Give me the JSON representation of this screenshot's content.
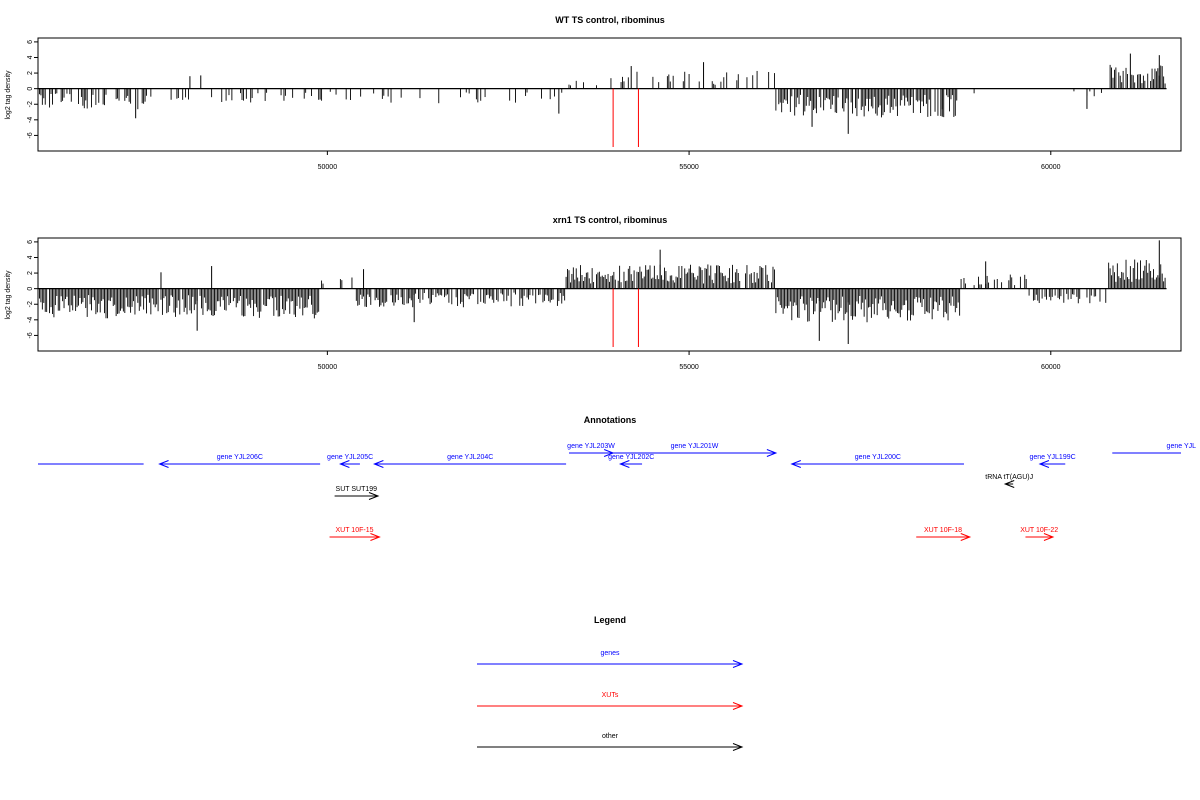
{
  "chart_data": [
    {
      "type": "bar",
      "title": "WT TS control, ribominus",
      "ylabel": "log2 tag density",
      "xlim": [
        46000,
        61800
      ],
      "ylim": [
        -8,
        6.5
      ],
      "xticks": [
        "50000",
        "55000",
        "60000"
      ],
      "xtick_values": [
        50000,
        55000,
        60000
      ],
      "yticks": [
        "6",
        "4",
        "2",
        "0",
        "-2",
        "-4",
        "-6"
      ],
      "ytick_values": [
        6,
        4,
        2,
        0,
        -2,
        -4,
        -6
      ],
      "grid": false,
      "colors": {
        "bars": "#000000",
        "markers": "#ff0000"
      },
      "data_range": [
        46000,
        61600
      ],
      "profile": [
        {
          "from": 46000,
          "to": 47500,
          "sign": -1,
          "amp": 2.2,
          "density": 0.6
        },
        {
          "from": 47500,
          "to": 53300,
          "sign": -1,
          "amp": 1.6,
          "density": 0.18
        },
        {
          "from": 53300,
          "to": 53850,
          "sign": 1,
          "amp": 1.2,
          "density": 0.1
        },
        {
          "from": 53850,
          "to": 56200,
          "sign": 1,
          "amp": 1.9,
          "density": 0.25
        },
        {
          "from": 56200,
          "to": 58750,
          "sign": -1,
          "amp": 3.1,
          "density": 0.85
        },
        {
          "from": 58750,
          "to": 60800,
          "sign": -1,
          "amp": 1.0,
          "density": 0.06
        },
        {
          "from": 60800,
          "to": 61600,
          "sign": 1,
          "amp": 2.6,
          "density": 0.8
        }
      ],
      "peaks": [
        {
          "x": 47350,
          "y": -3.8
        },
        {
          "x": 48100,
          "y": 1.6
        },
        {
          "x": 48250,
          "y": 1.7
        },
        {
          "x": 53200,
          "y": -3.2
        },
        {
          "x": 54200,
          "y": 2.9
        },
        {
          "x": 55200,
          "y": 3.4
        },
        {
          "x": 57200,
          "y": -5.8
        },
        {
          "x": 56700,
          "y": -4.9
        },
        {
          "x": 58500,
          "y": -3.6
        },
        {
          "x": 60500,
          "y": -2.6
        },
        {
          "x": 61100,
          "y": 4.5
        },
        {
          "x": 61500,
          "y": 4.3
        }
      ],
      "markers": [
        53950,
        54300
      ]
    },
    {
      "type": "bar",
      "title": "xrn1 TS control, ribominus",
      "ylabel": "log2 tag density",
      "xlim": [
        46000,
        61800
      ],
      "ylim": [
        -8,
        6.5
      ],
      "xticks": [
        "50000",
        "55000",
        "60000"
      ],
      "xtick_values": [
        50000,
        55000,
        60000
      ],
      "yticks": [
        "6",
        "4",
        "2",
        "0",
        "-2",
        "-4",
        "-6"
      ],
      "ytick_values": [
        6,
        4,
        2,
        0,
        -2,
        -4,
        -6
      ],
      "grid": false,
      "colors": {
        "bars": "#000000",
        "markers": "#ff0000"
      },
      "data_range": [
        46000,
        61600
      ],
      "profile": [
        {
          "from": 46000,
          "to": 49900,
          "sign": -1,
          "amp": 3.2,
          "density": 0.95
        },
        {
          "from": 49900,
          "to": 50400,
          "sign": 1,
          "amp": 1.2,
          "density": 0.4
        },
        {
          "from": 50400,
          "to": 53300,
          "sign": -1,
          "amp": 2.0,
          "density": 0.7
        },
        {
          "from": 53300,
          "to": 56200,
          "sign": 1,
          "amp": 2.6,
          "density": 0.9
        },
        {
          "from": 56200,
          "to": 58750,
          "sign": -1,
          "amp": 3.6,
          "density": 1.0
        },
        {
          "from": 58750,
          "to": 59700,
          "sign": 1,
          "amp": 1.6,
          "density": 0.5
        },
        {
          "from": 59700,
          "to": 60800,
          "sign": -1,
          "amp": 1.6,
          "density": 0.5
        },
        {
          "from": 60800,
          "to": 61600,
          "sign": 1,
          "amp": 3.2,
          "density": 1.0
        }
      ],
      "peaks": [
        {
          "x": 47700,
          "y": 2.1
        },
        {
          "x": 48400,
          "y": 2.9
        },
        {
          "x": 48200,
          "y": -5.4
        },
        {
          "x": 50500,
          "y": 2.5
        },
        {
          "x": 51200,
          "y": -4.3
        },
        {
          "x": 54600,
          "y": 5.0
        },
        {
          "x": 56800,
          "y": -6.7
        },
        {
          "x": 57200,
          "y": -7.1
        },
        {
          "x": 59100,
          "y": 3.5
        },
        {
          "x": 61500,
          "y": 6.2
        }
      ],
      "markers": [
        53950,
        54300
      ]
    }
  ],
  "annotations": {
    "title": "Annotations",
    "colors": {
      "genes": "#0000ff",
      "XUTs": "#ff0000",
      "other": "#000000"
    },
    "items": [
      {
        "label": "",
        "category": "genes",
        "from": 46000,
        "to": 47460
      },
      {
        "label": "gene YJL206C",
        "category": "genes",
        "from": 47680,
        "to": 49900
      },
      {
        "label": "gene YJL205C",
        "category": "genes",
        "from": 50180,
        "to": 50450
      },
      {
        "label": "gene YJL204C",
        "category": "genes",
        "from": 50650,
        "to": 53300
      },
      {
        "label": "gene YJL203W",
        "category": "genes",
        "from": 53340,
        "to": 53950
      },
      {
        "label": "gene YJL202C",
        "category": "genes",
        "from": 54050,
        "to": 54350
      },
      {
        "label": "gene YJL201W",
        "category": "genes",
        "from": 53950,
        "to": 56200
      },
      {
        "label": "gene YJL200C",
        "category": "genes",
        "from": 56420,
        "to": 58800
      },
      {
        "label": "gene YJL199C",
        "category": "genes",
        "from": 59850,
        "to": 60200
      },
      {
        "label": "gene YJL",
        "category": "genes",
        "from": 60850,
        "to": 61800
      },
      {
        "label": "SUT SUT199",
        "category": "other",
        "from": 50100,
        "to": 50700
      },
      {
        "label": "tRNA tT(AGU)J",
        "category": "other",
        "from": 59370,
        "to": 59480
      },
      {
        "label": "XUT 10F-15",
        "category": "XUTs",
        "from": 50030,
        "to": 50720
      },
      {
        "label": "XUT 10F-18",
        "category": "XUTs",
        "from": 58140,
        "to": 58880
      },
      {
        "label": "XUT 10F-22",
        "category": "XUTs",
        "from": 59650,
        "to": 60030
      }
    ]
  },
  "legend": {
    "title": "Legend",
    "entries": [
      {
        "label": "genes",
        "color": "#0000ff"
      },
      {
        "label": "XUTs",
        "color": "#ff0000"
      },
      {
        "label": "other",
        "color": "#000000"
      }
    ]
  }
}
